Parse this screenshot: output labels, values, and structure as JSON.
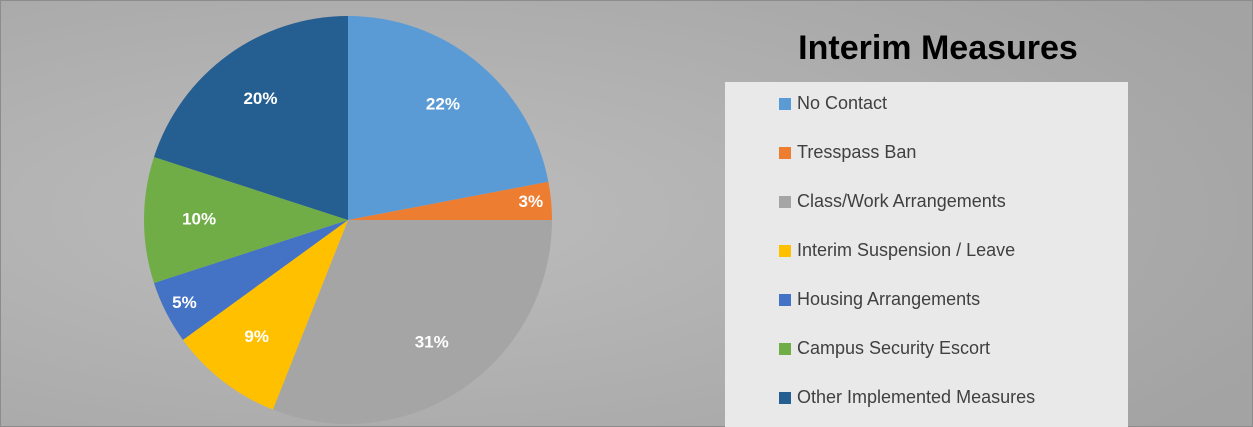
{
  "chart_data": {
    "type": "pie",
    "title": "Interim Measures",
    "categories": [
      "No Contact",
      "Tresspass Ban",
      "Class/Work Arrangements",
      "Interim Suspension / Leave",
      "Housing Arrangements",
      "Campus Security Escort",
      "Other Implemented Measures"
    ],
    "values": [
      22,
      3,
      31,
      9,
      5,
      10,
      20
    ],
    "value_labels": [
      "22%",
      "3%",
      "31%",
      "9%",
      "5%",
      "10%",
      "20%"
    ],
    "colors": [
      "#5b9bd5",
      "#ed7d31",
      "#a5a5a5",
      "#ffc000",
      "#4472c4",
      "#70ad47",
      "#255e91"
    ],
    "legend": "right"
  }
}
